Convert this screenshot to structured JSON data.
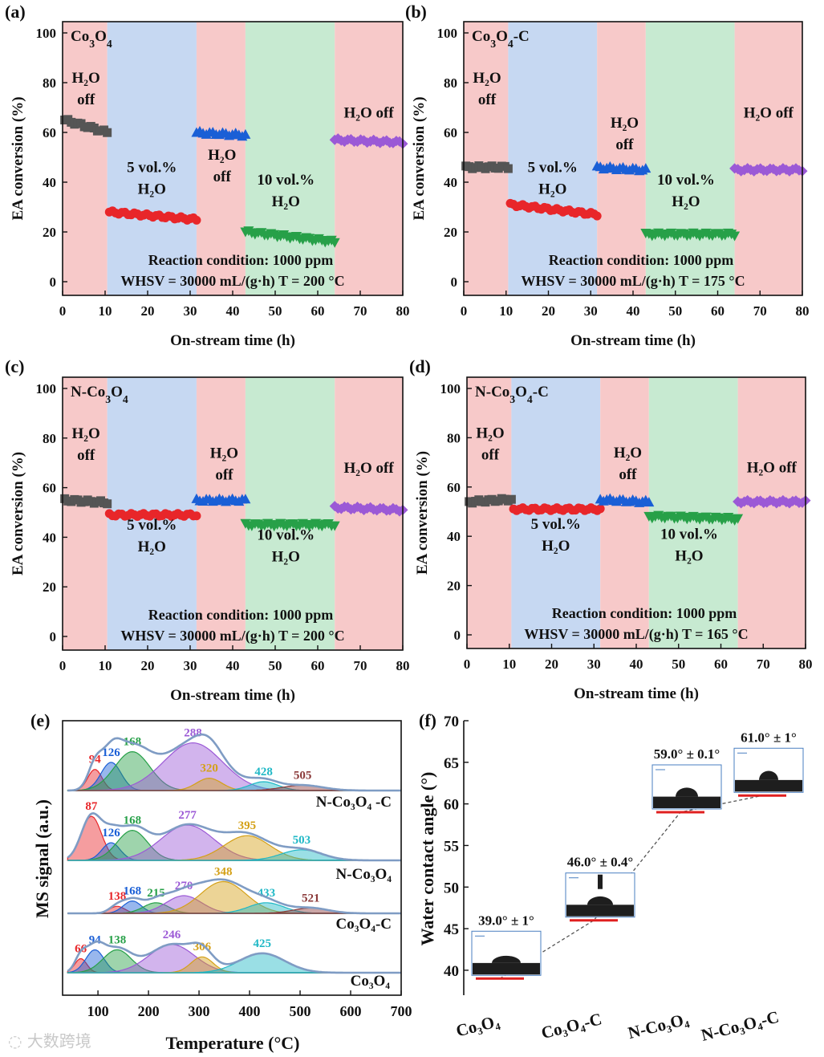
{
  "figure": {
    "watermark": "大数跨境",
    "panels": [
      {
        "id": "a",
        "letter": "(a)",
        "material": "Co3O4",
        "xlabel": "On-stream time (h)",
        "ylabel": "EA conversion (%)",
        "xlim": [
          0,
          80
        ],
        "ylim": [
          0,
          100
        ],
        "xticks": [
          0,
          10,
          20,
          30,
          40,
          50,
          60,
          70,
          80
        ],
        "yticks": [
          0,
          20,
          40,
          60,
          80,
          100
        ],
        "regions": [
          {
            "from": 0,
            "to": 10.5,
            "kind": "off"
          },
          {
            "from": 10.5,
            "to": 31.5,
            "kind": "h5"
          },
          {
            "from": 31.5,
            "to": 43,
            "kind": "off"
          },
          {
            "from": 43,
            "to": 64,
            "kind": "h10"
          },
          {
            "from": 64,
            "to": 80,
            "kind": "off"
          }
        ],
        "segments": [
          {
            "name": "H2O off",
            "t0": 0.5,
            "t1": 10.5,
            "v0": 65,
            "v1": 60,
            "color": "#555555",
            "marker": "square"
          },
          {
            "name": "5 vol.% H2O",
            "t0": 11,
            "t1": 31.5,
            "v0": 28,
            "v1": 25,
            "color": "#e8262a",
            "marker": "circle"
          },
          {
            "name": "H2O off",
            "t0": 31.5,
            "t1": 43,
            "v0": 60,
            "v1": 59,
            "color": "#1a5fd6",
            "marker": "triangle"
          },
          {
            "name": "10 vol.% H2O",
            "t0": 43,
            "t1": 64,
            "v0": 20,
            "v1": 16,
            "color": "#27a048",
            "marker": "down"
          },
          {
            "name": "H2O off",
            "t0": 64,
            "t1": 80,
            "v0": 57,
            "v1": 56,
            "color": "#9b59d6",
            "marker": "diamond"
          }
        ],
        "annotations": [
          {
            "t": 5.5,
            "v": 80,
            "lines": [
              "H₂O",
              "off"
            ]
          },
          {
            "t": 21,
            "v": 44,
            "lines": [
              "5 vol.%",
              "H₂O"
            ]
          },
          {
            "t": 37.5,
            "v": 49,
            "lines": [
              "H₂O",
              "off"
            ]
          },
          {
            "t": 52.5,
            "v": 39,
            "lines": [
              "10 vol.%",
              "H₂O"
            ]
          },
          {
            "t": 72,
            "v": 66,
            "lines": [
              "H₂O off"
            ]
          }
        ],
        "condition_line1": "Reaction condition: 1000 ppm",
        "condition_line2": "WHSV = 30000 mL/(g·h)    T = 200 °C"
      },
      {
        "id": "b",
        "letter": "(b)",
        "material": "Co3O4-C",
        "xlabel": "On-stream time (h)",
        "ylabel": "EA conversion (%)",
        "xlim": [
          0,
          80
        ],
        "ylim": [
          0,
          100
        ],
        "xticks": [
          0,
          10,
          20,
          30,
          40,
          50,
          60,
          70,
          80
        ],
        "yticks": [
          0,
          20,
          40,
          60,
          80,
          100
        ],
        "regions": [
          {
            "from": 0,
            "to": 10.5,
            "kind": "off"
          },
          {
            "from": 10.5,
            "to": 31.5,
            "kind": "h5"
          },
          {
            "from": 31.5,
            "to": 43,
            "kind": "off"
          },
          {
            "from": 43,
            "to": 64,
            "kind": "h10"
          },
          {
            "from": 64,
            "to": 80,
            "kind": "off"
          }
        ],
        "segments": [
          {
            "name": "H2O off",
            "t0": 0.5,
            "t1": 10.5,
            "v0": 46,
            "v1": 46,
            "color": "#555555",
            "marker": "square"
          },
          {
            "name": "5 vol.% H2O",
            "t0": 11,
            "t1": 31.5,
            "v0": 31,
            "v1": 27,
            "color": "#e8262a",
            "marker": "circle"
          },
          {
            "name": "H2O off",
            "t0": 31.5,
            "t1": 43,
            "v0": 46,
            "v1": 45,
            "color": "#1a5fd6",
            "marker": "triangle"
          },
          {
            "name": "10 vol.% H2O",
            "t0": 43,
            "t1": 64,
            "v0": 19,
            "v1": 19,
            "color": "#27a048",
            "marker": "down"
          },
          {
            "name": "H2O off",
            "t0": 64,
            "t1": 80,
            "v0": 45,
            "v1": 45,
            "color": "#9b59d6",
            "marker": "diamond"
          }
        ],
        "annotations": [
          {
            "t": 5.5,
            "v": 80,
            "lines": [
              "H₂O",
              "off"
            ]
          },
          {
            "t": 21,
            "v": 44,
            "lines": [
              "5 vol.%",
              "H₂O"
            ]
          },
          {
            "t": 38,
            "v": 62,
            "lines": [
              "H₂O",
              "off"
            ]
          },
          {
            "t": 52.5,
            "v": 39,
            "lines": [
              "10 vol.%",
              "H₂O"
            ]
          },
          {
            "t": 72,
            "v": 66,
            "lines": [
              "H₂O off"
            ]
          }
        ],
        "condition_line1": "Reaction condition: 1000 ppm",
        "condition_line2": "WHSV = 30000 mL/(g·h)    T = 175 °C"
      },
      {
        "id": "c",
        "letter": "(c)",
        "material": "N-Co3O4",
        "xlabel": "On-stream time (h)",
        "ylabel": "EA conversion (%)",
        "xlim": [
          0,
          80
        ],
        "ylim": [
          0,
          100
        ],
        "xticks": [
          0,
          10,
          20,
          30,
          40,
          50,
          60,
          70,
          80
        ],
        "yticks": [
          0,
          20,
          40,
          60,
          80,
          100
        ],
        "regions": [
          {
            "from": 0,
            "to": 10.5,
            "kind": "off"
          },
          {
            "from": 10.5,
            "to": 31.5,
            "kind": "h5"
          },
          {
            "from": 31.5,
            "to": 43,
            "kind": "off"
          },
          {
            "from": 43,
            "to": 64,
            "kind": "h10"
          },
          {
            "from": 64,
            "to": 80,
            "kind": "off"
          }
        ],
        "segments": [
          {
            "name": "H2O off",
            "t0": 0.5,
            "t1": 10.5,
            "v0": 55,
            "v1": 54,
            "color": "#555555",
            "marker": "square"
          },
          {
            "name": "5 vol.% H2O",
            "t0": 11,
            "t1": 31.5,
            "v0": 49,
            "v1": 49,
            "color": "#e8262a",
            "marker": "circle"
          },
          {
            "name": "H2O off",
            "t0": 31.5,
            "t1": 43,
            "v0": 55,
            "v1": 55,
            "color": "#1a5fd6",
            "marker": "triangle"
          },
          {
            "name": "10 vol.% H2O",
            "t0": 43,
            "t1": 64,
            "v0": 45,
            "v1": 45,
            "color": "#27a048",
            "marker": "down"
          },
          {
            "name": "H2O off",
            "t0": 64,
            "t1": 80,
            "v0": 52,
            "v1": 51,
            "color": "#9b59d6",
            "marker": "diamond"
          }
        ],
        "annotations": [
          {
            "t": 5.5,
            "v": 80,
            "lines": [
              "H₂O",
              "off"
            ]
          },
          {
            "t": 21,
            "v": 43,
            "lines": [
              "5 vol.%",
              "H₂O"
            ]
          },
          {
            "t": 38,
            "v": 72,
            "lines": [
              "H₂O",
              "off"
            ]
          },
          {
            "t": 52.5,
            "v": 39,
            "lines": [
              "10 vol.%",
              "H₂O"
            ]
          },
          {
            "t": 72,
            "v": 66,
            "lines": [
              "H₂O off"
            ]
          }
        ],
        "condition_line1": "Reaction condition: 1000 ppm",
        "condition_line2": "WHSV = 30000 mL/(g·h)    T = 200 °C"
      },
      {
        "id": "d",
        "letter": "(d)",
        "material": "N-Co3O4-C",
        "xlabel": "On-stream time (h)",
        "ylabel": "EA conversion (%)",
        "xlim": [
          0,
          80
        ],
        "ylim": [
          0,
          100
        ],
        "xticks": [
          0,
          10,
          20,
          30,
          40,
          50,
          60,
          70,
          80
        ],
        "yticks": [
          0,
          20,
          40,
          60,
          80,
          100
        ],
        "regions": [
          {
            "from": 0,
            "to": 10.5,
            "kind": "off"
          },
          {
            "from": 10.5,
            "to": 31.5,
            "kind": "h5"
          },
          {
            "from": 31.5,
            "to": 43,
            "kind": "off"
          },
          {
            "from": 43,
            "to": 64,
            "kind": "h10"
          },
          {
            "from": 64,
            "to": 80,
            "kind": "off"
          }
        ],
        "segments": [
          {
            "name": "H2O off",
            "t0": 0.5,
            "t1": 10.5,
            "v0": 54,
            "v1": 55,
            "color": "#555555",
            "marker": "square"
          },
          {
            "name": "5 vol.% H2O",
            "t0": 11,
            "t1": 31.5,
            "v0": 51,
            "v1": 51,
            "color": "#e8262a",
            "marker": "circle"
          },
          {
            "name": "H2O off",
            "t0": 31.5,
            "t1": 43,
            "v0": 55,
            "v1": 54,
            "color": "#1a5fd6",
            "marker": "triangle"
          },
          {
            "name": "10 vol.% H2O",
            "t0": 43,
            "t1": 64,
            "v0": 48,
            "v1": 47,
            "color": "#27a048",
            "marker": "down"
          },
          {
            "name": "H2O off",
            "t0": 64,
            "t1": 80,
            "v0": 54,
            "v1": 54,
            "color": "#9b59d6",
            "marker": "diamond"
          }
        ],
        "annotations": [
          {
            "t": 5.5,
            "v": 80,
            "lines": [
              "H₂O",
              "off"
            ]
          },
          {
            "t": 21,
            "v": 43,
            "lines": [
              "5 vol.%",
              "H₂O"
            ]
          },
          {
            "t": 38,
            "v": 72,
            "lines": [
              "H₂O",
              "off"
            ]
          },
          {
            "t": 52.5,
            "v": 39,
            "lines": [
              "10 vol.%",
              "H₂O"
            ]
          },
          {
            "t": 72,
            "v": 66,
            "lines": [
              "H₂O off"
            ]
          }
        ],
        "condition_line1": "Reaction condition: 1000 ppm",
        "condition_line2": "WHSV = 30000 mL/(g·h)    T = 165 °C"
      }
    ]
  },
  "chart_data": [
    {
      "type": "line",
      "panel": "(e)",
      "xlabel": "Temperature (°C)",
      "ylabel": "MS signal (a.u.)",
      "xlim": [
        30,
        700
      ],
      "xticks": [
        100,
        200,
        300,
        400,
        500,
        600,
        700
      ],
      "curves": [
        {
          "name": "N-Co3O4 -C",
          "label_tex": "N-Co₃O₄ -C",
          "peaks": [
            {
              "center": 94,
              "label": "94",
              "height": 0.12,
              "width": 14,
              "color": "#e8262a"
            },
            {
              "center": 126,
              "label": "126",
              "height": 0.16,
              "width": 20,
              "color": "#1a5fd6"
            },
            {
              "center": 168,
              "label": "168",
              "height": 0.22,
              "width": 35,
              "color": "#27a048"
            },
            {
              "center": 288,
              "label": "288",
              "height": 0.27,
              "width": 58,
              "color": "#9b59d6"
            },
            {
              "center": 320,
              "label": "320",
              "height": 0.07,
              "width": 25,
              "color": "#d4a017"
            },
            {
              "center": 428,
              "label": "428",
              "height": 0.05,
              "width": 28,
              "color": "#1fb8c6"
            },
            {
              "center": 505,
              "label": "505",
              "height": 0.03,
              "width": 40,
              "color": "#8b3a3a"
            }
          ]
        },
        {
          "name": "N-Co3O4",
          "label_tex": "N-Co₃O₄",
          "peaks": [
            {
              "center": 87,
              "label": "87",
              "height": 0.25,
              "width": 20,
              "color": "#e8262a"
            },
            {
              "center": 126,
              "label": "126",
              "height": 0.1,
              "width": 18,
              "color": "#1a5fd6"
            },
            {
              "center": 168,
              "label": "168",
              "height": 0.17,
              "width": 30,
              "color": "#27a048"
            },
            {
              "center": 277,
              "label": "277",
              "height": 0.2,
              "width": 52,
              "color": "#9b59d6"
            },
            {
              "center": 395,
              "label": "395",
              "height": 0.14,
              "width": 45,
              "color": "#d4a017"
            },
            {
              "center": 503,
              "label": "503",
              "height": 0.06,
              "width": 40,
              "color": "#1fb8c6"
            }
          ]
        },
        {
          "name": "Co3O4-C",
          "label_tex": "Co₃O₄-C",
          "peaks": [
            {
              "center": 138,
              "label": "138",
              "height": 0.04,
              "width": 15,
              "color": "#e8262a"
            },
            {
              "center": 168,
              "label": "168",
              "height": 0.07,
              "width": 18,
              "color": "#1a5fd6"
            },
            {
              "center": 215,
              "label": "215",
              "height": 0.06,
              "width": 25,
              "color": "#27a048"
            },
            {
              "center": 270,
              "label": "270",
              "height": 0.1,
              "width": 35,
              "color": "#9b59d6"
            },
            {
              "center": 348,
              "label": "348",
              "height": 0.18,
              "width": 45,
              "color": "#d4a017"
            },
            {
              "center": 433,
              "label": "433",
              "height": 0.06,
              "width": 35,
              "color": "#1fb8c6"
            },
            {
              "center": 521,
              "label": "521",
              "height": 0.03,
              "width": 35,
              "color": "#8b3a3a"
            }
          ]
        },
        {
          "name": "Co3O4",
          "label_tex": "Co₃O₄",
          "peaks": [
            {
              "center": 66,
              "label": "66",
              "height": 0.08,
              "width": 12,
              "color": "#e8262a"
            },
            {
              "center": 94,
              "label": "94",
              "height": 0.13,
              "width": 18,
              "color": "#1a5fd6"
            },
            {
              "center": 138,
              "label": "138",
              "height": 0.13,
              "width": 28,
              "color": "#27a048"
            },
            {
              "center": 246,
              "label": "246",
              "height": 0.16,
              "width": 45,
              "color": "#9b59d6"
            },
            {
              "center": 306,
              "label": "306",
              "height": 0.09,
              "width": 22,
              "color": "#d4a017"
            },
            {
              "center": 425,
              "label": "425",
              "height": 0.11,
              "width": 45,
              "color": "#1fb8c6"
            }
          ]
        }
      ]
    },
    {
      "type": "scatter",
      "panel": "(f)",
      "ylabel": "Water contact angle (°)",
      "ylim": [
        37,
        70
      ],
      "yticks": [
        40,
        45,
        50,
        55,
        60,
        65,
        70
      ],
      "categories": [
        "Co₃O₄",
        "Co₃O₄-C",
        "N-Co₃O₄",
        "N-Co₃O₄-C"
      ],
      "values": [
        39.0,
        46.0,
        59.0,
        61.0
      ],
      "labels": [
        "39.0° ± 1°",
        "46.0° ± 0.4°",
        "59.0° ± 0.1°",
        "61.0° ± 1°"
      ],
      "marker_color": "#e02020"
    }
  ]
}
